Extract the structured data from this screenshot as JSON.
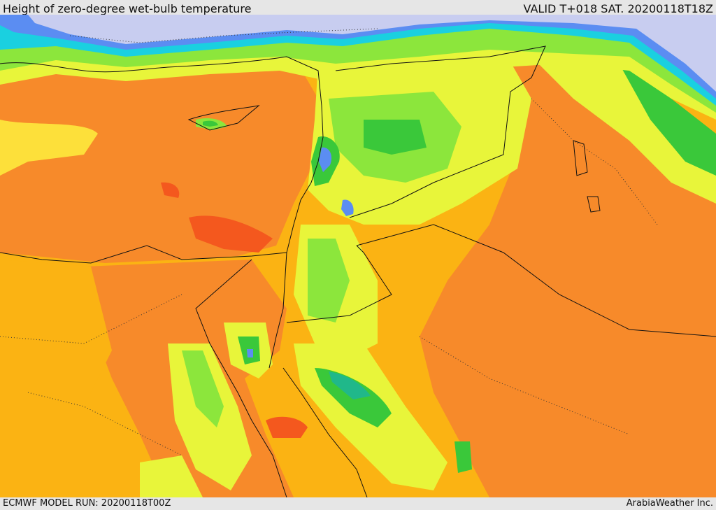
{
  "header": {
    "title": "Height of zero-degree wet-bulb temperature",
    "valid": "VALID T+018 SAT. 20200118T18Z"
  },
  "footer": {
    "model_run": "ECMWF MODEL RUN: 20200118T00Z",
    "credit": "ArabiaWeather Inc."
  },
  "colors": {
    "very_low": "#c8cdf0",
    "low_blue": "#5b8df2",
    "cyan": "#1ad0e0",
    "teal": "#20b88a",
    "green": "#3ac83a",
    "light_green": "#8ce63c",
    "yellow_green": "#e8f53a",
    "yellow": "#fde03a",
    "amber": "#fbb313",
    "orange": "#f78a2a",
    "red_orange": "#f4581e"
  }
}
